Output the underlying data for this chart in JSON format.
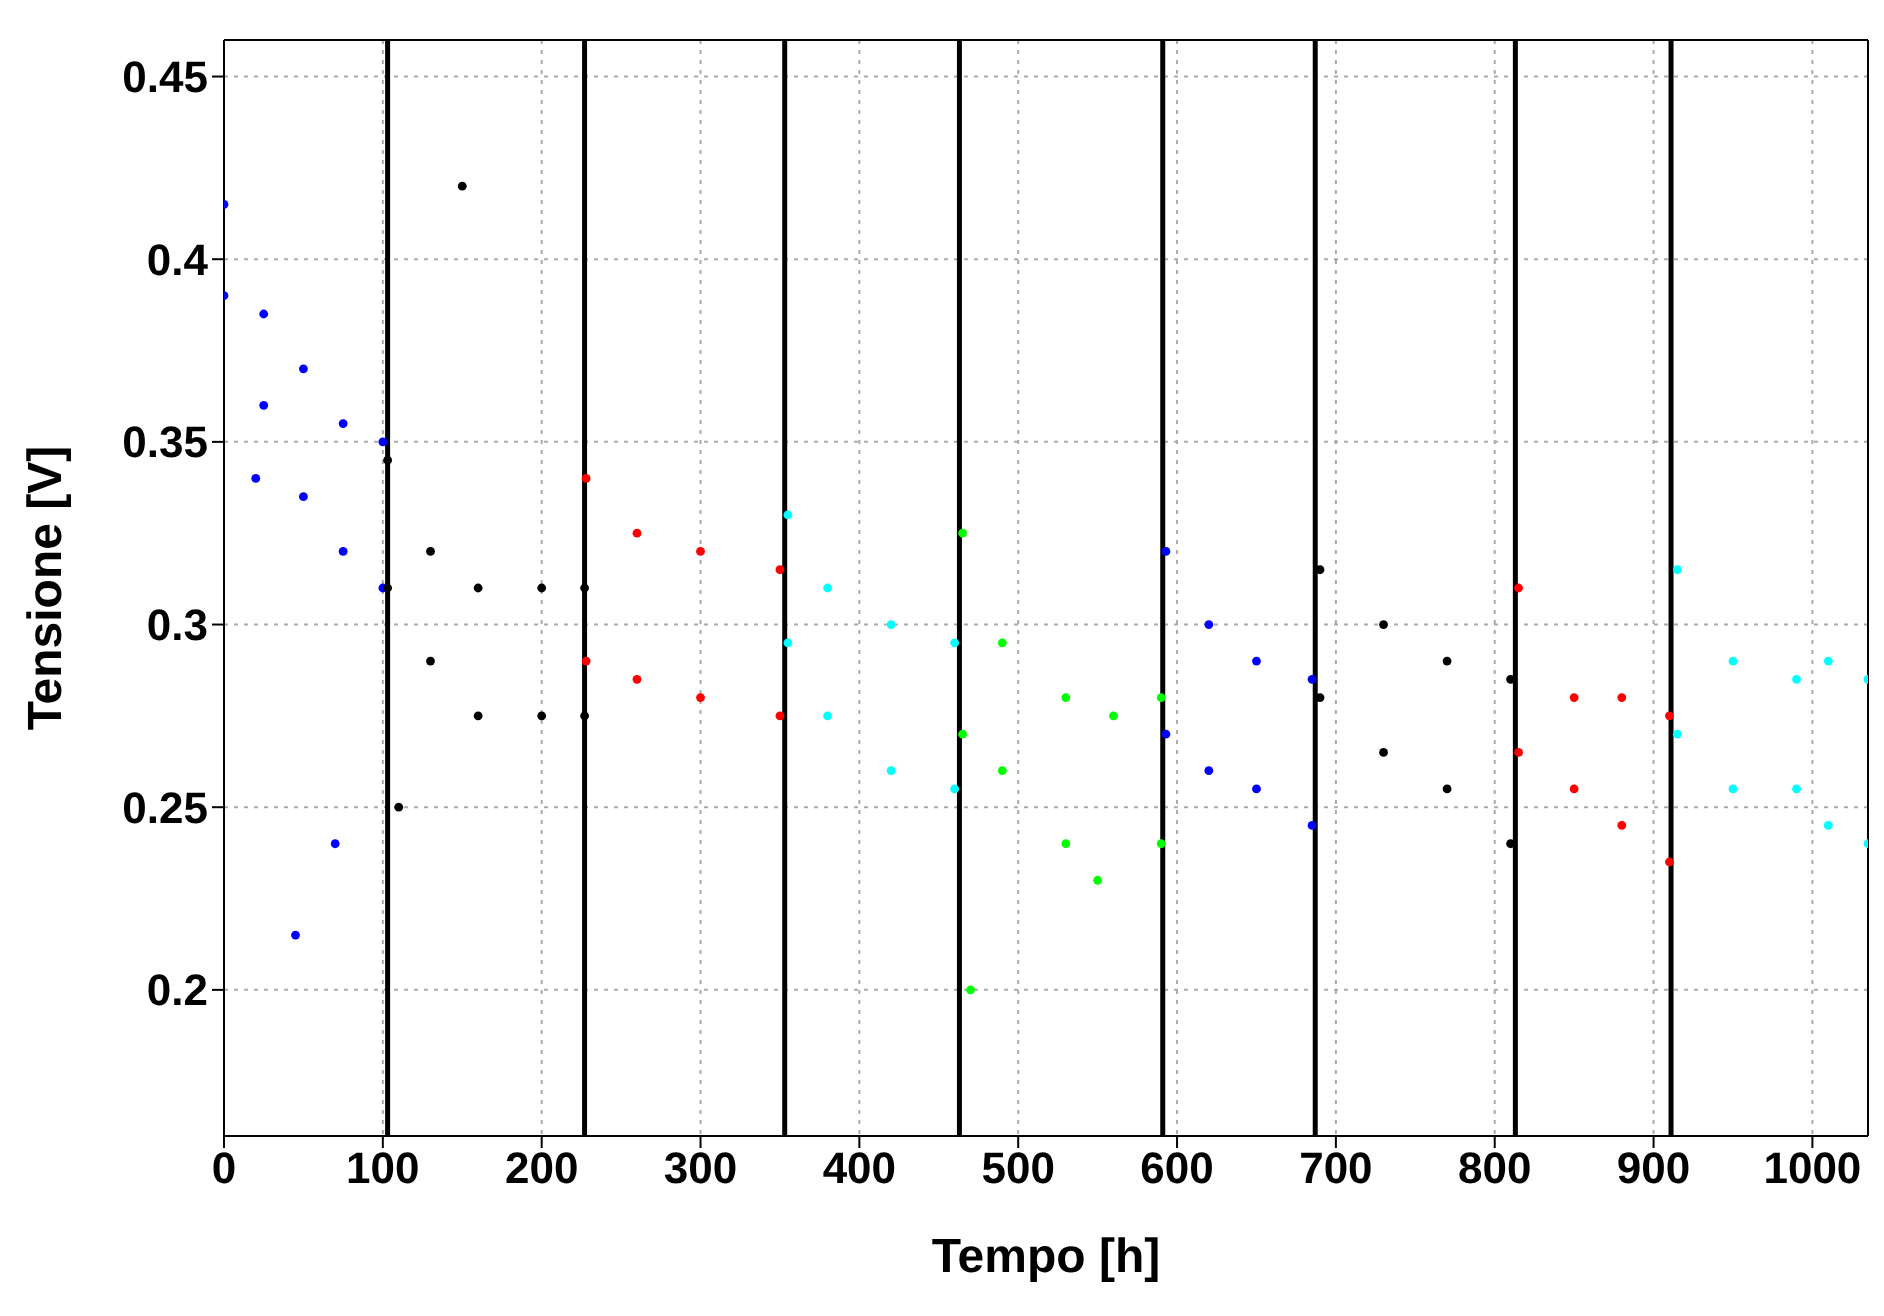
{
  "chart_data": {
    "type": "scatter",
    "xlabel": "Tempo [h]",
    "ylabel": "Tensione [V]",
    "xlim": [
      0,
      1035
    ],
    "ylim": [
      0.16,
      0.46
    ],
    "xticks": [
      0,
      100,
      200,
      300,
      400,
      500,
      600,
      700,
      800,
      900,
      1000
    ],
    "yticks": [
      0.2,
      0.25,
      0.3,
      0.35,
      0.4,
      0.45
    ],
    "grid": true,
    "marker": "circle",
    "legend": false,
    "series": [
      {
        "color": "#0000ff",
        "x": [
          0,
          25,
          50,
          75,
          100,
          0,
          25,
          50,
          75,
          100,
          45,
          20,
          70
        ],
        "values": [
          0.415,
          0.385,
          0.37,
          0.355,
          0.35,
          0.39,
          0.36,
          0.335,
          0.32,
          0.31,
          0.215,
          0.34,
          0.24
        ]
      },
      {
        "color": "#000000",
        "x": [
          103,
          130,
          160,
          200,
          227,
          103,
          130,
          160,
          200,
          227,
          110,
          150
        ],
        "values": [
          0.345,
          0.32,
          0.31,
          0.31,
          0.31,
          0.31,
          0.29,
          0.275,
          0.275,
          0.275,
          0.25,
          0.42
        ]
      },
      {
        "color": "#ff0000",
        "x": [
          228,
          260,
          300,
          350,
          228,
          260,
          300,
          350
        ],
        "values": [
          0.34,
          0.325,
          0.32,
          0.315,
          0.29,
          0.285,
          0.28,
          0.275
        ]
      },
      {
        "color": "#00ffff",
        "x": [
          355,
          380,
          420,
          460,
          355,
          380,
          420,
          460
        ],
        "values": [
          0.33,
          0.31,
          0.3,
          0.295,
          0.295,
          0.275,
          0.26,
          0.255
        ]
      },
      {
        "color": "#00ff00",
        "x": [
          465,
          490,
          530,
          560,
          590,
          465,
          490,
          530,
          550,
          590,
          470
        ],
        "values": [
          0.325,
          0.295,
          0.28,
          0.275,
          0.28,
          0.27,
          0.26,
          0.24,
          0.23,
          0.24,
          0.2
        ]
      },
      {
        "color": "#0000ff",
        "x": [
          593,
          620,
          650,
          685,
          593,
          620,
          650,
          685
        ],
        "values": [
          0.32,
          0.3,
          0.29,
          0.285,
          0.27,
          0.26,
          0.255,
          0.245
        ]
      },
      {
        "color": "#000000",
        "x": [
          690,
          730,
          770,
          810,
          690,
          730,
          770,
          810
        ],
        "values": [
          0.315,
          0.3,
          0.29,
          0.285,
          0.28,
          0.265,
          0.255,
          0.24
        ]
      },
      {
        "color": "#ff0000",
        "x": [
          815,
          850,
          880,
          910,
          815,
          850,
          880,
          910
        ],
        "values": [
          0.31,
          0.28,
          0.28,
          0.275,
          0.265,
          0.255,
          0.245,
          0.235
        ]
      },
      {
        "color": "#00ffff",
        "x": [
          915,
          950,
          990,
          1010,
          1035,
          915,
          950,
          990,
          1010,
          1035
        ],
        "values": [
          0.315,
          0.29,
          0.285,
          0.29,
          0.285,
          0.27,
          0.255,
          0.255,
          0.245,
          0.24
        ]
      }
    ],
    "ref_lines": [
      {
        "axis": "x",
        "value": 103,
        "color": "#000000"
      },
      {
        "axis": "x",
        "value": 227,
        "color": "#000000"
      },
      {
        "axis": "x",
        "value": 353,
        "color": "#000000"
      },
      {
        "axis": "x",
        "value": 463,
        "color": "#000000"
      },
      {
        "axis": "x",
        "value": 591,
        "color": "#000000"
      },
      {
        "axis": "x",
        "value": 687,
        "color": "#000000"
      },
      {
        "axis": "x",
        "value": 813,
        "color": "#000000"
      },
      {
        "axis": "x",
        "value": 911,
        "color": "#000000"
      }
    ]
  }
}
